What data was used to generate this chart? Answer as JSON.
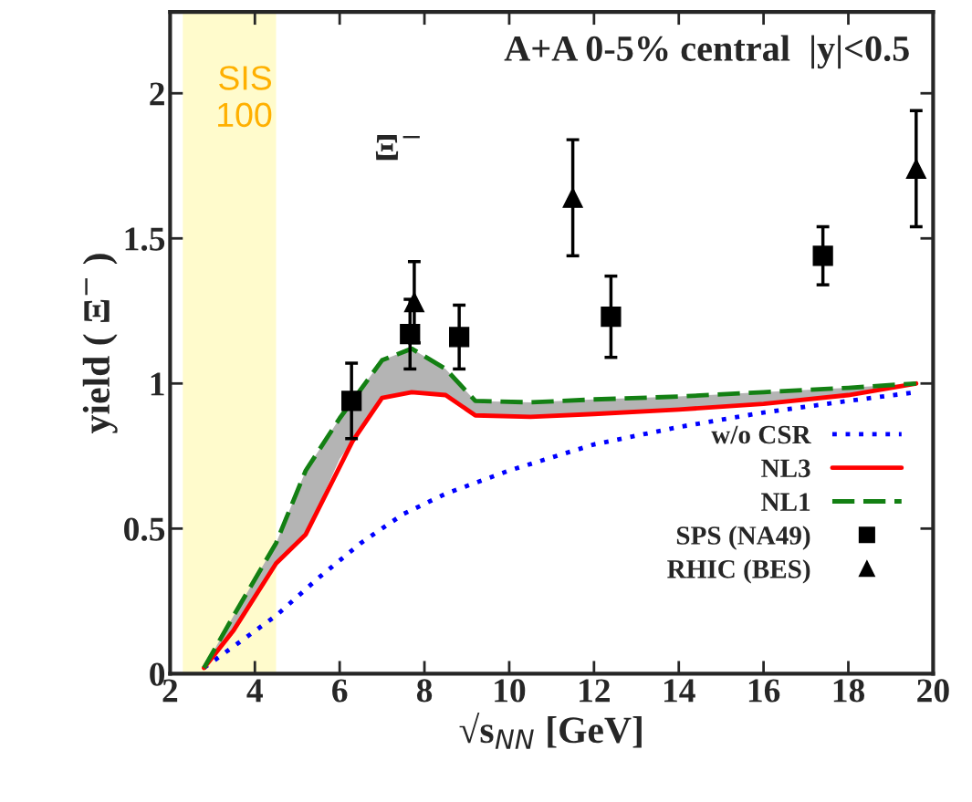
{
  "chart_data": {
    "type": "line",
    "title": "A+A 0-5% central  |y|<0.5",
    "xlabel": "√s$_{NN}$ [GeV]",
    "ylabel": "yield ( Ξ$^{−}$ )",
    "xlim": [
      2,
      20
    ],
    "ylim": [
      0,
      2.28
    ],
    "xticks": [
      2,
      4,
      6,
      8,
      10,
      12,
      14,
      16,
      18,
      20
    ],
    "yticks": [
      0,
      0.5,
      1,
      1.5,
      2
    ],
    "grid": false,
    "legend": "bottom right",
    "annotations": [
      "Ξ$^{−}$"
    ],
    "bands": [
      {
        "axis": "x",
        "from": 2.3,
        "to": 4.5,
        "label": "SIS\n100",
        "color": "#fffbcc"
      }
    ],
    "series": [
      {
        "name": "w/o CSR",
        "color": "#0000ff",
        "line_style": "dotted",
        "marker": "none",
        "x": [
          2.8,
          4.5,
          5.5,
          6.5,
          7.5,
          8.5,
          10,
          12,
          14,
          16,
          18,
          19.6
        ],
        "values": [
          0.02,
          0.2,
          0.33,
          0.45,
          0.55,
          0.62,
          0.7,
          0.79,
          0.85,
          0.9,
          0.94,
          0.97
        ]
      },
      {
        "name": "NL3",
        "color": "#ff0000",
        "line_style": "solid",
        "marker": "none",
        "x": [
          2.8,
          3.5,
          4.5,
          5.2,
          6.3,
          7,
          7.7,
          8.5,
          9.2,
          10.5,
          12,
          14,
          16,
          18,
          19.6
        ],
        "values": [
          0.02,
          0.15,
          0.38,
          0.48,
          0.8,
          0.95,
          0.97,
          0.96,
          0.89,
          0.885,
          0.895,
          0.91,
          0.93,
          0.96,
          1.0
        ]
      },
      {
        "name": "NL1",
        "color": "#138013",
        "line_style": "dashed",
        "marker": "none",
        "x": [
          2.8,
          3.5,
          4.5,
          5.2,
          6.0,
          7,
          7.7,
          8.5,
          9.2,
          10.5,
          12,
          14,
          16,
          18,
          19.6
        ],
        "values": [
          0.02,
          0.2,
          0.45,
          0.7,
          0.88,
          1.08,
          1.12,
          1.05,
          0.94,
          0.935,
          0.945,
          0.955,
          0.97,
          0.985,
          1.0
        ],
        "lower": [
          0.02,
          0.15,
          0.38,
          0.48,
          0.74,
          0.95,
          0.97,
          0.96,
          0.89,
          0.885,
          0.895,
          0.91,
          0.93,
          0.96,
          1.0
        ],
        "upper": [
          0.02,
          0.2,
          0.45,
          0.7,
          0.88,
          1.08,
          1.12,
          1.05,
          0.94,
          0.935,
          0.945,
          0.955,
          0.97,
          0.985,
          1.0
        ]
      },
      {
        "name": "SPS (NA49)",
        "type": "scatter",
        "color": "#000000",
        "marker": "square",
        "x": [
          6.28,
          7.66,
          8.82,
          12.4,
          17.4
        ],
        "values": [
          0.94,
          1.17,
          1.16,
          1.23,
          1.44
        ],
        "errors": [
          0.13,
          0.12,
          0.11,
          0.14,
          0.1
        ]
      },
      {
        "name": "RHIC (BES)",
        "type": "scatter",
        "color": "#000000",
        "marker": "triangle",
        "x": [
          7.76,
          11.5,
          19.6
        ],
        "values": [
          1.28,
          1.64,
          1.74
        ],
        "errors": [
          0.14,
          0.2,
          0.2
        ]
      }
    ]
  }
}
